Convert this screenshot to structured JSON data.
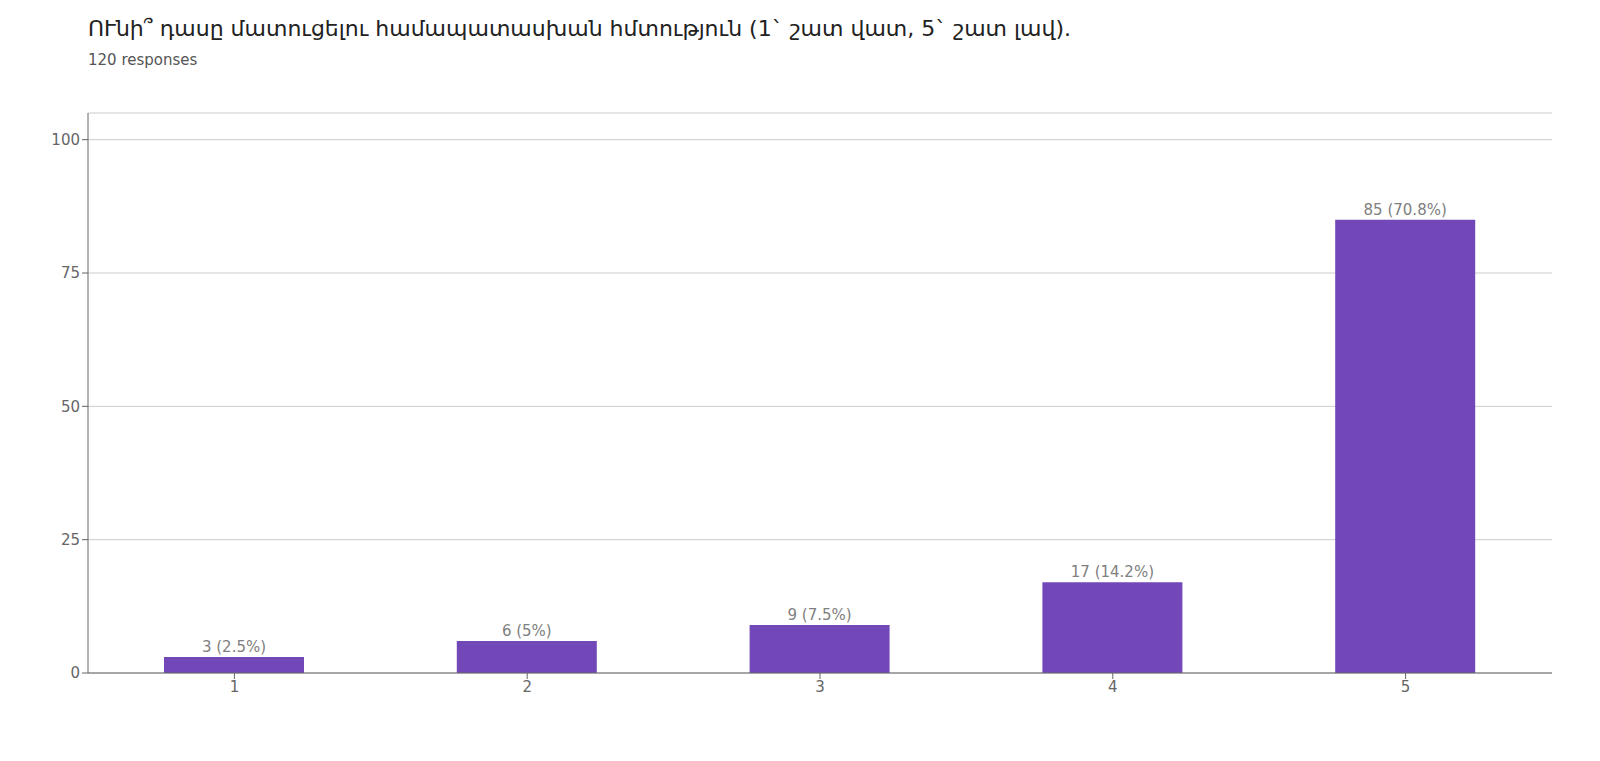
{
  "chart_data": {
    "type": "bar",
    "title": "ՈՒնի՞ դասը մատուցելու համապատասխան հմտություն  (1` շատ վատ, 5` շատ լավ).",
    "subtitle": "120 responses",
    "categories": [
      "1",
      "2",
      "3",
      "4",
      "5"
    ],
    "values": [
      3,
      6,
      9,
      17,
      85
    ],
    "value_labels": [
      "3 (2.5%)",
      "6 (5%)",
      "9 (7.5%)",
      "17 (14.2%)",
      "85 (70.8%)"
    ],
    "data_labels": true,
    "color": "#7248b9",
    "ylim": [
      0,
      105
    ],
    "yticks": [
      0,
      25,
      50,
      75,
      100
    ],
    "grid": true
  }
}
